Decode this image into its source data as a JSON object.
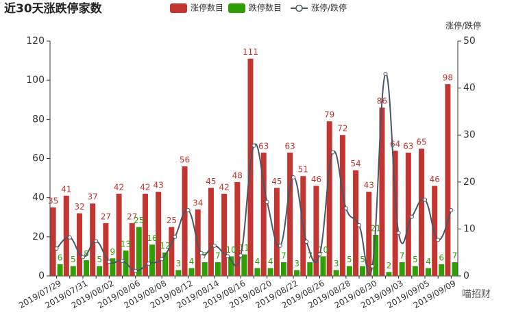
{
  "chart_data": {
    "type": "bar-line",
    "title": "近30天涨跌停家数",
    "y2_label": "涨停/跌停",
    "watermark": "喵招财",
    "categories": [
      "2019/07/29",
      null,
      "2019/07/31",
      null,
      "2019/08/02",
      null,
      "2019/08/06",
      null,
      "2019/08/08",
      null,
      "2019/08/12",
      null,
      "2019/08/14",
      null,
      "2019/08/16",
      null,
      "2019/08/20",
      null,
      "2019/08/22",
      null,
      "2019/08/26",
      null,
      "2019/08/28",
      null,
      "2019/08/30",
      null,
      "2019/09/03",
      null,
      "2019/09/05",
      null,
      "2019/09/09"
    ],
    "series": [
      {
        "name": "涨停数目",
        "kind": "bar",
        "color": "#c23531",
        "values": [
          35,
          41,
          32,
          37,
          27,
          42,
          27,
          42,
          43,
          25,
          56,
          34,
          45,
          42,
          48,
          111,
          63,
          45,
          63,
          51,
          46,
          79,
          72,
          54,
          43,
          86,
          64,
          63,
          65,
          46,
          98
        ]
      },
      {
        "name": "跌停数目",
        "kind": "bar",
        "color": "#2f9e07",
        "values": [
          6,
          5,
          8,
          5,
          9,
          13,
          25,
          16,
          12,
          3,
          4,
          7,
          7,
          10,
          11,
          4,
          4,
          7,
          3,
          7,
          10,
          3,
          5,
          5,
          21,
          2,
          7,
          5,
          4,
          6,
          7
        ]
      },
      {
        "name": "涨停/跌停",
        "kind": "line",
        "axis": "y2",
        "color": "#4b5563",
        "values": [
          5.83,
          8.2,
          4,
          7.4,
          3,
          3.23,
          1.08,
          2.63,
          3.58,
          8.33,
          14,
          4.86,
          6.43,
          4.2,
          4.36,
          27.75,
          15.75,
          6.43,
          21,
          7.29,
          4.6,
          26.33,
          14.4,
          10.8,
          2.05,
          43,
          9.14,
          12.6,
          16.25,
          7.67,
          14
        ]
      }
    ],
    "ylim": [
      0,
      120
    ],
    "yticks": [
      0,
      20,
      40,
      60,
      80,
      100,
      120
    ],
    "y2lim": [
      0,
      50
    ],
    "y2ticks": [
      0,
      10,
      20,
      30,
      40,
      50
    ]
  }
}
